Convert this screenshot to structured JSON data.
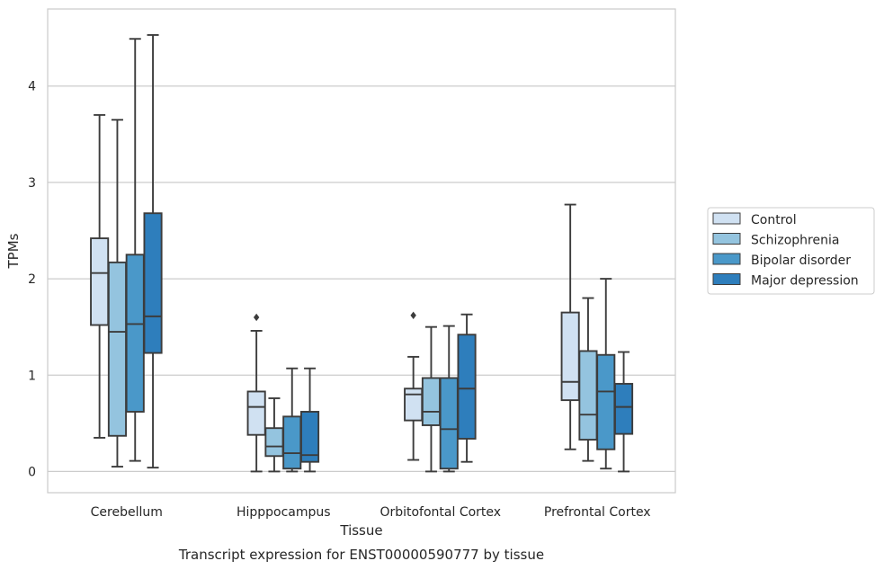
{
  "chart_data": {
    "type": "box",
    "caption": "Transcript expression for ENST00000590777 by tissue",
    "xlabel": "Tissue",
    "ylabel": "TPMs",
    "ylim": [
      -0.22,
      4.8
    ],
    "yticks": [
      0,
      1,
      2,
      3,
      4
    ],
    "grid": "horizontal",
    "legend_position": "right",
    "categories": [
      "Cerebellum",
      "Hipppocampus",
      "Orbitofontal Cortex",
      "Prefrontal Cortex"
    ],
    "series": [
      {
        "name": "Control",
        "color": "#d0e1f2",
        "boxes": [
          {
            "whislo": 0.35,
            "q1": 1.52,
            "med": 2.06,
            "q3": 2.42,
            "whishi": 3.7,
            "fliers": []
          },
          {
            "whislo": 0.0,
            "q1": 0.38,
            "med": 0.67,
            "q3": 0.83,
            "whishi": 1.46,
            "fliers": [
              1.6
            ]
          },
          {
            "whislo": 0.12,
            "q1": 0.53,
            "med": 0.8,
            "q3": 0.86,
            "whishi": 1.19,
            "fliers": [
              1.62
            ]
          },
          {
            "whislo": 0.23,
            "q1": 0.74,
            "med": 0.93,
            "q3": 1.65,
            "whishi": 2.77,
            "fliers": []
          }
        ]
      },
      {
        "name": "Schizophrenia",
        "color": "#94c4df",
        "boxes": [
          {
            "whislo": 0.05,
            "q1": 0.37,
            "med": 1.45,
            "q3": 2.17,
            "whishi": 3.65,
            "fliers": []
          },
          {
            "whislo": 0.0,
            "q1": 0.16,
            "med": 0.26,
            "q3": 0.45,
            "whishi": 0.76,
            "fliers": []
          },
          {
            "whislo": 0.0,
            "q1": 0.48,
            "med": 0.62,
            "q3": 0.97,
            "whishi": 1.5,
            "fliers": []
          },
          {
            "whislo": 0.11,
            "q1": 0.33,
            "med": 0.59,
            "q3": 1.25,
            "whishi": 1.8,
            "fliers": []
          }
        ]
      },
      {
        "name": "Bipolar disorder",
        "color": "#4a98c9",
        "boxes": [
          {
            "whislo": 0.11,
            "q1": 0.62,
            "med": 1.53,
            "q3": 2.25,
            "whishi": 4.49,
            "fliers": []
          },
          {
            "whislo": 0.0,
            "q1": 0.03,
            "med": 0.19,
            "q3": 0.57,
            "whishi": 1.07,
            "fliers": []
          },
          {
            "whislo": 0.0,
            "q1": 0.03,
            "med": 0.44,
            "q3": 0.97,
            "whishi": 1.51,
            "fliers": []
          },
          {
            "whislo": 0.03,
            "q1": 0.23,
            "med": 0.83,
            "q3": 1.21,
            "whishi": 2.0,
            "fliers": []
          }
        ]
      },
      {
        "name": "Major depression",
        "color": "#2e7ebc",
        "boxes": [
          {
            "whislo": 0.04,
            "q1": 1.23,
            "med": 1.61,
            "q3": 2.68,
            "whishi": 4.53,
            "fliers": []
          },
          {
            "whislo": 0.0,
            "q1": 0.1,
            "med": 0.17,
            "q3": 0.62,
            "whishi": 1.07,
            "fliers": []
          },
          {
            "whislo": 0.1,
            "q1": 0.34,
            "med": 0.86,
            "q3": 1.42,
            "whishi": 1.63,
            "fliers": []
          },
          {
            "whislo": 0.0,
            "q1": 0.39,
            "med": 0.67,
            "q3": 0.91,
            "whishi": 1.24,
            "fliers": []
          }
        ]
      }
    ]
  }
}
